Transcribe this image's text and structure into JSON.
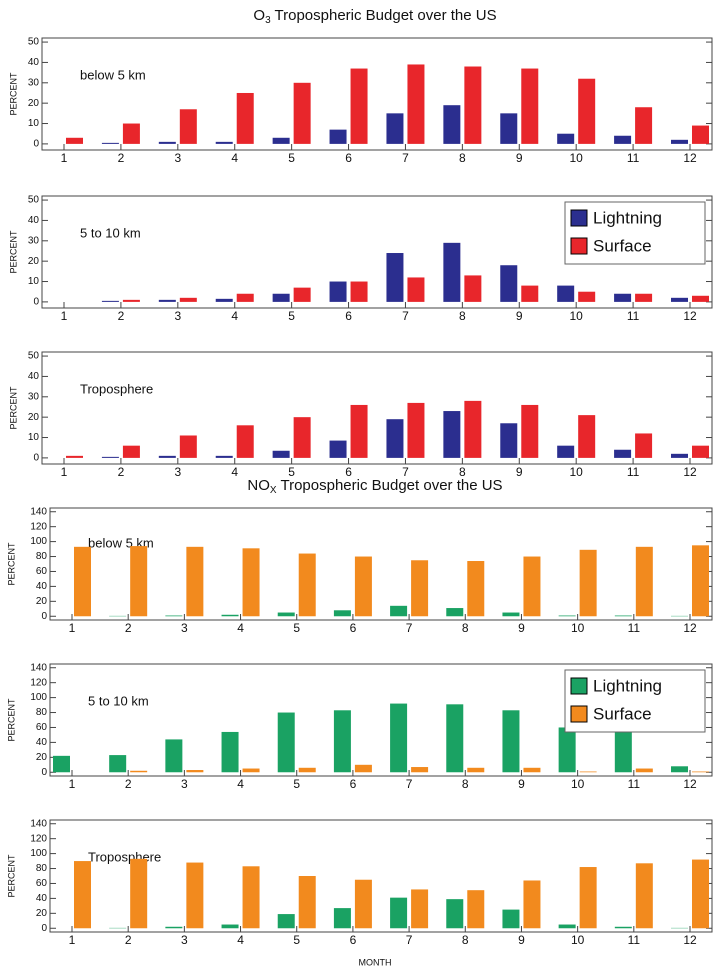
{
  "chart_data": [
    {
      "type": "bar",
      "title": [
        "O",
        "3",
        " Tropospheric Budget over the US"
      ],
      "panel_label": "below 5 km",
      "ylabel": "PERCENT",
      "categories": [
        "1",
        "2",
        "3",
        "4",
        "5",
        "6",
        "7",
        "8",
        "9",
        "10",
        "11",
        "12"
      ],
      "series": [
        {
          "name": "Lightning",
          "color": "#2b2e8f",
          "values": [
            0,
            0.5,
            1,
            1,
            3,
            7,
            15,
            19,
            15,
            5,
            4,
            2
          ]
        },
        {
          "name": "Surface",
          "color": "#e8262b",
          "values": [
            3,
            10,
            17,
            25,
            30,
            37,
            39,
            38,
            37,
            32,
            18,
            9
          ]
        }
      ],
      "ylim": [
        -3,
        52
      ],
      "yticks": [
        0,
        10,
        20,
        30,
        40,
        50
      ],
      "legend": false
    },
    {
      "type": "bar",
      "panel_label": "5 to 10 km",
      "ylabel": "PERCENT",
      "categories": [
        "1",
        "2",
        "3",
        "4",
        "5",
        "6",
        "7",
        "8",
        "9",
        "10",
        "11",
        "12"
      ],
      "series": [
        {
          "name": "Lightning",
          "color": "#2b2e8f",
          "values": [
            0,
            0.5,
            1,
            1.5,
            4,
            10,
            24,
            29,
            18,
            8,
            4,
            2
          ]
        },
        {
          "name": "Surface",
          "color": "#e8262b",
          "values": [
            0,
            1,
            2,
            4,
            7,
            10,
            12,
            13,
            8,
            5,
            4,
            3
          ]
        }
      ],
      "ylim": [
        -3,
        52
      ],
      "yticks": [
        0,
        10,
        20,
        30,
        40,
        50
      ],
      "legend": "upper right"
    },
    {
      "type": "bar",
      "panel_label": "Troposphere",
      "ylabel": "PERCENT",
      "categories": [
        "1",
        "2",
        "3",
        "4",
        "5",
        "6",
        "7",
        "8",
        "9",
        "10",
        "11",
        "12"
      ],
      "series": [
        {
          "name": "Lightning",
          "color": "#2b2e8f",
          "values": [
            0,
            0.5,
            1,
            1,
            3.5,
            8.5,
            19,
            23,
            17,
            6,
            4,
            2
          ]
        },
        {
          "name": "Surface",
          "color": "#e8262b",
          "values": [
            1,
            6,
            11,
            16,
            20,
            26,
            27,
            28,
            26,
            21,
            12,
            6
          ]
        }
      ],
      "ylim": [
        -3,
        52
      ],
      "yticks": [
        0,
        10,
        20,
        30,
        40,
        50
      ],
      "legend": false
    },
    {
      "type": "bar",
      "title": [
        "NO",
        "X",
        " Tropospheric Budget over the US"
      ],
      "panel_label": "below 5 km",
      "ylabel": "PERCENT",
      "categories": [
        "1",
        "2",
        "3",
        "4",
        "5",
        "6",
        "7",
        "8",
        "9",
        "10",
        "11",
        "12"
      ],
      "series": [
        {
          "name": "Lightning",
          "color": "#1aa263",
          "values": [
            0,
            0.5,
            1,
            2,
            5,
            8,
            14,
            11,
            5,
            1,
            1,
            0.5
          ]
        },
        {
          "name": "Surface",
          "color": "#f28a1e",
          "values": [
            93,
            94,
            93,
            91,
            84,
            80,
            75,
            74,
            80,
            89,
            93,
            95
          ]
        }
      ],
      "ylim": [
        -5,
        145
      ],
      "yticks": [
        0,
        20,
        40,
        60,
        80,
        100,
        120,
        140
      ],
      "legend": false
    },
    {
      "type": "bar",
      "panel_label": "5 to 10 km",
      "ylabel": "PERCENT",
      "categories": [
        "1",
        "2",
        "3",
        "4",
        "5",
        "6",
        "7",
        "8",
        "9",
        "10",
        "11",
        "12"
      ],
      "series": [
        {
          "name": "Lightning",
          "color": "#1aa263",
          "values": [
            22,
            23,
            44,
            54,
            80,
            83,
            92,
            91,
            83,
            60,
            60,
            8
          ]
        },
        {
          "name": "Surface",
          "color": "#f28a1e",
          "values": [
            0,
            2,
            3,
            5,
            6,
            10,
            7,
            6,
            6,
            1,
            5,
            1
          ]
        }
      ],
      "ylim": [
        -5,
        145
      ],
      "yticks": [
        0,
        20,
        40,
        60,
        80,
        100,
        120,
        140
      ],
      "legend": "upper right"
    },
    {
      "type": "bar",
      "panel_label": "Troposphere",
      "ylabel": "PERCENT",
      "xlabel": "MONTH",
      "categories": [
        "1",
        "2",
        "3",
        "4",
        "5",
        "6",
        "7",
        "8",
        "9",
        "10",
        "11",
        "12"
      ],
      "series": [
        {
          "name": "Lightning",
          "color": "#1aa263",
          "values": [
            0,
            0.5,
            2,
            5,
            19,
            27,
            41,
            39,
            25,
            5,
            2,
            0.5
          ]
        },
        {
          "name": "Surface",
          "color": "#f28a1e",
          "values": [
            90,
            93,
            88,
            83,
            70,
            65,
            52,
            51,
            64,
            82,
            87,
            92
          ]
        }
      ],
      "ylim": [
        -5,
        145
      ],
      "yticks": [
        0,
        20,
        40,
        60,
        80,
        100,
        120,
        140
      ],
      "legend": false
    }
  ]
}
